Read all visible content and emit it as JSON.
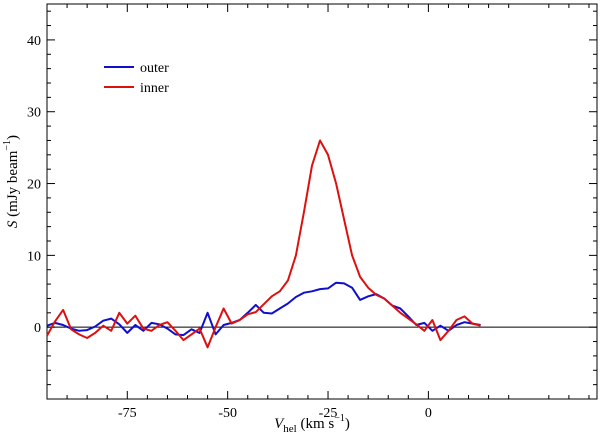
{
  "chart_data": {
    "type": "line",
    "xlim": [
      -95,
      42
    ],
    "ylim": [
      -10,
      45
    ],
    "x_ticks": [
      "-75",
      "-50",
      "-25",
      "0"
    ],
    "x_tick_values": [
      -75,
      -50,
      -25,
      0
    ],
    "y_ticks": [
      "0",
      "10",
      "20",
      "30",
      "40"
    ],
    "y_tick_values": [
      0,
      10,
      20,
      30,
      40
    ],
    "xlabel": {
      "main": "V",
      "sub": "hel",
      "units_pre": " (km s",
      "units_sup": "−1",
      "units_post": ")"
    },
    "ylabel": {
      "main": "S",
      "units_pre": " (mJy beam",
      "units_sup": "−1",
      "units_post": ")"
    },
    "zero_line": 0,
    "legend": {
      "placement": "upper-left"
    },
    "series": [
      {
        "name": "outer",
        "color": "#1010cc",
        "x": [
          -95,
          -93,
          -91,
          -89,
          -87,
          -85,
          -83,
          -81,
          -79,
          -77,
          -75,
          -73,
          -71,
          -69,
          -67,
          -65,
          -63,
          -61,
          -59,
          -57,
          -55,
          -53,
          -51,
          -49,
          -47,
          -45,
          -43,
          -41,
          -39,
          -37,
          -35,
          -33,
          -31,
          -29,
          -27,
          -25,
          -23,
          -21,
          -19,
          -17,
          -15,
          -13,
          -11,
          -9,
          -7,
          -5,
          -3,
          -1,
          1,
          3,
          5,
          7,
          9,
          11,
          13
        ],
        "y": [
          0.2,
          0.6,
          0.3,
          -0.2,
          -0.5,
          -0.4,
          0.1,
          0.9,
          1.2,
          0.4,
          -0.8,
          0.3,
          -0.5,
          0.6,
          0.4,
          -0.2,
          -1.0,
          -1.1,
          -0.3,
          -0.8,
          2.0,
          -1.0,
          0.3,
          0.6,
          1.0,
          2.0,
          3.1,
          2.0,
          1.9,
          2.6,
          3.3,
          4.2,
          4.8,
          5.0,
          5.3,
          5.4,
          6.2,
          6.1,
          5.5,
          3.8,
          4.3,
          4.6,
          4.0,
          3.0,
          2.6,
          1.5,
          0.3,
          0.6,
          -0.5,
          0.2,
          -0.5,
          0.3,
          0.7,
          0.5,
          0.3
        ]
      },
      {
        "name": "inner",
        "color": "#dd1010",
        "x": [
          -95,
          -93,
          -91,
          -89,
          -87,
          -85,
          -83,
          -81,
          -79,
          -77,
          -75,
          -73,
          -71,
          -69,
          -67,
          -65,
          -63,
          -61,
          -59,
          -57,
          -55,
          -53,
          -51,
          -49,
          -47,
          -45,
          -43,
          -41,
          -39,
          -37,
          -35,
          -33,
          -31,
          -29,
          -27,
          -25,
          -23,
          -21,
          -19,
          -17,
          -15,
          -13,
          -11,
          -9,
          -7,
          -5,
          -3,
          -1,
          1,
          3,
          5,
          7,
          9,
          11,
          13
        ],
        "y": [
          -1.2,
          0.8,
          2.4,
          -0.3,
          -1.0,
          -1.5,
          -0.8,
          0.2,
          -0.5,
          2.0,
          0.5,
          1.6,
          -0.2,
          -0.5,
          0.3,
          0.7,
          -0.5,
          -1.8,
          -1.0,
          -0.2,
          -2.8,
          0.0,
          2.6,
          0.5,
          1.0,
          1.8,
          2.1,
          3.2,
          4.3,
          5.0,
          6.5,
          10.0,
          16.0,
          22.5,
          26.0,
          24.0,
          20.0,
          15.0,
          10.0,
          7.0,
          5.5,
          4.5,
          4.0,
          3.0,
          2.0,
          1.2,
          0.4,
          -0.5,
          1.0,
          -1.8,
          -0.5,
          1.0,
          1.5,
          0.5,
          0.2
        ]
      }
    ]
  }
}
